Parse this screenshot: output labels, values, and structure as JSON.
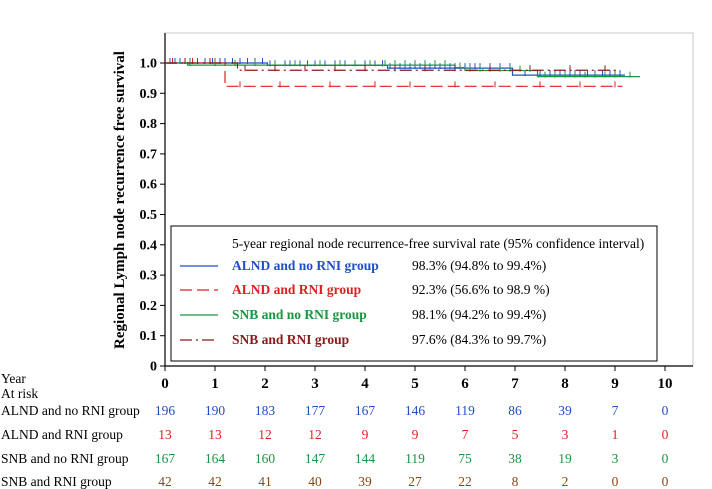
{
  "chart_data": {
    "type": "line",
    "ylabel": "Regional Lymph node recurrence free survival",
    "xlim": [
      0,
      10
    ],
    "ylim": [
      0,
      1.0
    ],
    "x_ticks": [
      "0",
      "1",
      "2",
      "3",
      "4",
      "5",
      "6",
      "7",
      "8",
      "9",
      "10"
    ],
    "y_ticks": [
      "0",
      "0.1",
      "0.2",
      "0.3",
      "0.4",
      "0.5",
      "0.6",
      "0.7",
      "0.8",
      "0.9",
      "1.0"
    ],
    "grid": false,
    "legend": {
      "position": "bottom-center",
      "title": "5-year regional node recurrence-free survival rate (95% confidence interval)"
    },
    "series": [
      {
        "name": "ALND and no RNI group",
        "color": "#1f4fc6",
        "dash": "solid",
        "rate": "98.3% (94.8% to  99.4%)",
        "steps": [
          [
            0,
            1.0
          ],
          [
            2.05,
            0.992
          ],
          [
            4.45,
            0.983
          ],
          [
            6.95,
            0.96
          ],
          [
            9.2,
            0.96
          ]
        ],
        "censor_x": [
          0.1,
          0.2,
          0.3,
          0.5,
          0.65,
          0.8,
          0.95,
          1.1,
          1.2,
          1.35,
          1.5,
          1.65,
          1.8,
          1.95,
          2.1,
          2.2,
          2.4,
          2.5,
          2.7,
          2.85,
          3.0,
          3.2,
          3.4,
          3.6,
          3.8,
          4.0,
          4.2,
          4.35,
          4.5,
          4.6,
          4.7,
          4.8,
          4.9,
          5.0,
          5.1,
          5.2,
          5.3,
          5.4,
          5.5,
          5.6,
          5.7,
          5.8,
          5.9,
          6.0,
          6.1,
          6.2,
          6.3,
          6.5,
          6.7,
          6.9,
          7.2,
          7.5,
          7.7,
          7.8,
          7.9,
          8.0,
          8.1,
          8.2,
          8.3,
          8.45,
          8.6,
          8.75,
          8.9,
          9.0,
          9.1
        ]
      },
      {
        "name": "ALND and RNI group",
        "color": "#e02020",
        "dash": "long",
        "rate": "92.3% (56.6% to 98.9 %)",
        "steps": [
          [
            0,
            1.0
          ],
          [
            1.2,
            0.923
          ],
          [
            9.15,
            0.923
          ]
        ],
        "censor_x": [
          0.15,
          0.55,
          1.0,
          1.5,
          2.3,
          3.3,
          4.2,
          4.9,
          5.8,
          6.6,
          7.5,
          8.3,
          9.0
        ]
      },
      {
        "name": "SNB and no RNI group",
        "color": "#1a9641",
        "dash": "solid",
        "rate": "98.1% (94.2% to 99.4%)",
        "steps": [
          [
            0,
            1.0
          ],
          [
            0.45,
            0.993
          ],
          [
            5.8,
            0.985
          ],
          [
            6.0,
            0.975
          ],
          [
            7.45,
            0.955
          ],
          [
            9.5,
            0.955
          ]
        ],
        "censor_x": [
          0.5,
          1.0,
          1.4,
          1.8,
          2.2,
          2.6,
          3.1,
          3.5,
          3.8,
          4.1,
          4.4,
          4.6,
          4.8,
          5.0,
          5.2,
          5.4,
          5.6,
          5.9,
          6.1,
          6.3,
          6.5,
          6.7,
          6.9,
          7.1,
          7.3,
          7.6,
          7.8,
          8.0,
          8.2,
          8.4,
          8.6,
          8.8,
          9.0,
          9.3
        ]
      },
      {
        "name": "SNB and RNI group",
        "color": "#8b1a1a",
        "dash": "dashdot",
        "rate": "97.6% (84.3% to 99.7%)",
        "steps": [
          [
            0,
            1.0
          ],
          [
            1.45,
            0.976
          ],
          [
            9.05,
            0.976
          ]
        ],
        "censor_x": [
          0.4,
          0.9,
          1.6,
          2.2,
          2.8,
          3.4,
          4.0,
          4.6,
          5.2,
          5.8,
          6.5,
          7.3,
          8.1,
          8.8
        ]
      }
    ],
    "risk_table": {
      "header_year": "Year",
      "header_at_risk": "At risk",
      "rows": [
        {
          "label": "ALND and no RNI group",
          "color": "#1f4fc6",
          "values": [
            "196",
            "190",
            "183",
            "177",
            "167",
            "146",
            "119",
            "86",
            "39",
            "7",
            "0"
          ]
        },
        {
          "label": "ALND and RNI group",
          "color": "#e02020",
          "values": [
            "13",
            "13",
            "12",
            "12",
            "9",
            "9",
            "7",
            "5",
            "3",
            "1",
            "0"
          ]
        },
        {
          "label": "SNB and no RNI group",
          "color": "#1a9641",
          "values": [
            "167",
            "164",
            "160",
            "147",
            "144",
            "119",
            "75",
            "38",
            "19",
            "3",
            "0"
          ]
        },
        {
          "label": "SNB and RNI group",
          "color": "#8b4513",
          "values": [
            "42",
            "42",
            "41",
            "40",
            "39",
            "27",
            "22",
            "8",
            "2",
            "0",
            "0"
          ]
        }
      ]
    }
  }
}
